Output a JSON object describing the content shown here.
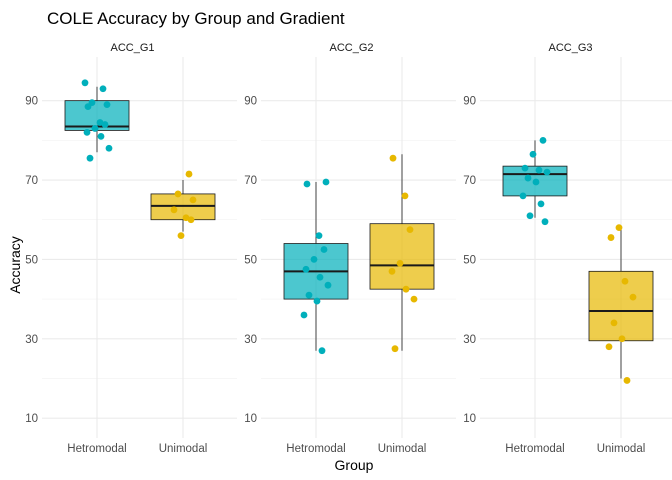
{
  "chart_data": {
    "type": "box",
    "title": "COLE Accuracy by Group and Gradient",
    "xlabel": "Group",
    "ylabel": "Accuracy",
    "ylim": [
      5,
      101
    ],
    "yticks": [
      10,
      30,
      50,
      70,
      90
    ],
    "grid": true,
    "legend": "none",
    "categories": [
      "Hetromodal",
      "Unimodal"
    ],
    "colors": {
      "Hetromodal": "#00AFBB",
      "Unimodal": "#E7B800"
    },
    "panels": [
      {
        "name": "ACC_G1",
        "boxes": [
          {
            "group": "Hetromodal",
            "q1": 82.5,
            "median": 83.5,
            "q3": 90.0,
            "whisker_low": 77.0,
            "whisker_high": 93.5,
            "points": [
              94.5,
              93.0,
              89.5,
              89.0,
              88.5,
              84.5,
              84.0,
              83.0,
              82.0,
              81.0,
              78.0,
              75.5
            ]
          },
          {
            "group": "Unimodal",
            "q1": 60.0,
            "median": 63.5,
            "q3": 66.5,
            "whisker_low": 57.0,
            "whisker_high": 70.0,
            "points": [
              71.5,
              66.5,
              65.0,
              62.5,
              60.5,
              60.0,
              56.0
            ]
          }
        ]
      },
      {
        "name": "ACC_G2",
        "boxes": [
          {
            "group": "Hetromodal",
            "q1": 40.0,
            "median": 47.0,
            "q3": 54.0,
            "whisker_low": 27.0,
            "whisker_high": 69.5,
            "points": [
              69.5,
              69.0,
              56.0,
              52.5,
              50.0,
              47.5,
              45.5,
              43.5,
              41.0,
              39.5,
              36.0,
              27.0
            ]
          },
          {
            "group": "Unimodal",
            "q1": 42.5,
            "median": 48.5,
            "q3": 59.0,
            "whisker_low": 27.0,
            "whisker_high": 76.5,
            "points": [
              75.5,
              66.0,
              57.5,
              49.0,
              47.0,
              42.5,
              40.0,
              27.5
            ]
          }
        ]
      },
      {
        "name": "ACC_G3",
        "boxes": [
          {
            "group": "Hetromodal",
            "q1": 66.0,
            "median": 71.5,
            "q3": 73.5,
            "whisker_low": 60.5,
            "whisker_high": 80.0,
            "points": [
              80.0,
              76.5,
              73.0,
              72.5,
              72.0,
              70.5,
              69.5,
              66.0,
              64.0,
              61.0,
              59.5
            ]
          },
          {
            "group": "Unimodal",
            "q1": 29.5,
            "median": 37.0,
            "q3": 47.0,
            "whisker_low": 20.0,
            "whisker_high": 58.0,
            "points": [
              58.0,
              55.5,
              44.5,
              40.5,
              34.0,
              30.0,
              28.0,
              19.5
            ]
          }
        ]
      }
    ]
  }
}
